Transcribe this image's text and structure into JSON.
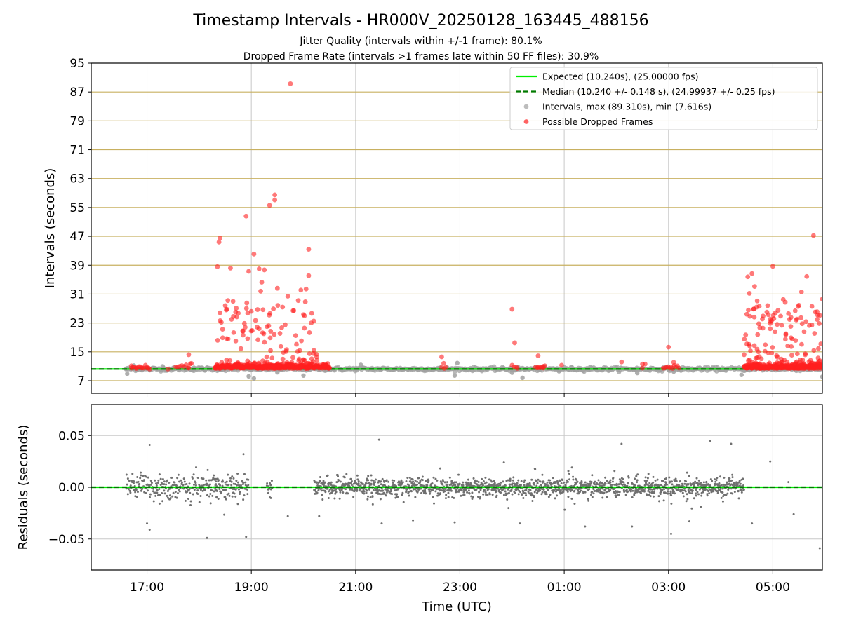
{
  "title": "Timestamp Intervals - HR000V_20250128_163445_488156",
  "subtitle_1": "Jitter Quality (intervals within +/-1 frame): 80.1%",
  "subtitle_2": "Dropped Frame Rate (intervals >1 frames late within 50 FF files): 30.9%",
  "colors": {
    "expected": "#00ee00",
    "median": "#007a00",
    "interval_points": "#a0a0a0",
    "dropped_points": "#ff2020",
    "threshold_lines": "#c8b060",
    "residual_points": "#707070",
    "grid": "#c8c8c8"
  },
  "chart_data": [
    {
      "type": "scatter",
      "panel": "top",
      "xlabel": "",
      "ylabel": "Intervals (seconds)",
      "ylim": [
        3.5,
        95
      ],
      "yticks": [
        7,
        15,
        23,
        31,
        39,
        47,
        55,
        63,
        71,
        79,
        87,
        95
      ],
      "xtick_labels": [
        "17:00",
        "19:00",
        "21:00",
        "23:00",
        "01:00",
        "03:00",
        "05:00"
      ],
      "xlim_hours": [
        15.93,
        29.95
      ],
      "grid": "vertical lines at x ticks",
      "legend_position": "top-right",
      "threshold_lines_y": [
        7,
        15,
        23,
        31,
        39,
        47,
        55,
        63,
        71,
        79,
        87
      ],
      "expected": {
        "name": "Expected (10.240s), (25.00000 fps)",
        "value": 10.24
      },
      "median": {
        "name": "Median (10.240 +/- 0.148 s), (24.99937 +/- 0.25 fps)",
        "value": 10.24
      },
      "intervals_legend": "Intervals, max (89.310s), min (7.616s)",
      "dropped_legend": "Possible Dropped Frames",
      "interval_points": [
        [
          16.6,
          10.3
        ],
        [
          16.62,
          8.9
        ],
        [
          16.7,
          10.5
        ],
        [
          16.75,
          11.2
        ],
        [
          16.9,
          10.1
        ],
        [
          17.0,
          10.4
        ],
        [
          17.05,
          9.9
        ],
        [
          17.3,
          11.0
        ],
        [
          17.5,
          10.2
        ],
        [
          17.9,
          10.6
        ],
        [
          18.1,
          10.0
        ],
        [
          18.95,
          8.2
        ],
        [
          19.05,
          7.6
        ],
        [
          19.5,
          9.3
        ],
        [
          20.0,
          8.4
        ],
        [
          20.1,
          10.9
        ],
        [
          20.6,
          10.2
        ],
        [
          21.1,
          11.4
        ],
        [
          21.5,
          10.3
        ],
        [
          22.0,
          10.1
        ],
        [
          22.6,
          10.0
        ],
        [
          22.9,
          8.4
        ],
        [
          22.95,
          11.9
        ],
        [
          23.5,
          10.4
        ],
        [
          24.0,
          9.2
        ],
        [
          24.1,
          10.7
        ],
        [
          24.2,
          7.8
        ],
        [
          24.9,
          9.6
        ],
        [
          25.5,
          10.8
        ],
        [
          26.0,
          10.6
        ],
        [
          26.4,
          9.1
        ],
        [
          26.7,
          10.5
        ],
        [
          27.2,
          10.4
        ],
        [
          27.1,
          9.5
        ],
        [
          27.6,
          10.6
        ],
        [
          28.4,
          8.6
        ],
        [
          28.5,
          10.1
        ],
        [
          29.0,
          10.3
        ],
        [
          29.95,
          8.1
        ]
      ],
      "dropped_points": [
        [
          16.7,
          10.5
        ],
        [
          16.8,
          10.4
        ],
        [
          16.9,
          10.5
        ],
        [
          17.0,
          10.7
        ],
        [
          17.05,
          10.2
        ],
        [
          17.4,
          10.2
        ],
        [
          17.8,
          14.2
        ],
        [
          17.85,
          11.8
        ],
        [
          17.8,
          10.5
        ],
        [
          18.35,
          38.6
        ],
        [
          18.38,
          45.4
        ],
        [
          18.4,
          46.5
        ],
        [
          18.45,
          18.9
        ],
        [
          18.5,
          27.8
        ],
        [
          18.52,
          26.6
        ],
        [
          18.55,
          29.2
        ],
        [
          18.6,
          38.2
        ],
        [
          18.62,
          24.0
        ],
        [
          18.65,
          29.0
        ],
        [
          18.7,
          26.0
        ],
        [
          18.75,
          25.7
        ],
        [
          18.8,
          15.9
        ],
        [
          18.9,
          52.6
        ],
        [
          18.95,
          37.3
        ],
        [
          19.0,
          26.2
        ],
        [
          19.05,
          42.1
        ],
        [
          19.08,
          23.7
        ],
        [
          19.12,
          26.7
        ],
        [
          19.15,
          38.0
        ],
        [
          19.18,
          31.8
        ],
        [
          19.2,
          34.3
        ],
        [
          19.25,
          37.7
        ],
        [
          19.3,
          22.0
        ],
        [
          19.35,
          55.6
        ],
        [
          19.45,
          58.5
        ],
        [
          19.45,
          57.1
        ],
        [
          19.5,
          32.6
        ],
        [
          19.55,
          20.1
        ],
        [
          19.6,
          27.4
        ],
        [
          19.65,
          22.5
        ],
        [
          19.7,
          30.4
        ],
        [
          19.75,
          89.3
        ],
        [
          19.8,
          26.4
        ],
        [
          19.85,
          19.5
        ],
        [
          19.9,
          29.2
        ],
        [
          19.95,
          32.1
        ],
        [
          20.0,
          25.3
        ],
        [
          20.05,
          32.4
        ],
        [
          20.1,
          36.1
        ],
        [
          20.1,
          43.4
        ],
        [
          20.15,
          23.0
        ],
        [
          20.2,
          15.4
        ],
        [
          20.25,
          13.6
        ],
        [
          20.4,
          11.2
        ],
        [
          20.5,
          10.5
        ],
        [
          22.65,
          13.6
        ],
        [
          22.7,
          10.4
        ],
        [
          24.0,
          26.8
        ],
        [
          24.05,
          17.5
        ],
        [
          24.1,
          10.4
        ],
        [
          24.5,
          13.9
        ],
        [
          24.5,
          10.6
        ],
        [
          24.6,
          10.5
        ],
        [
          24.95,
          11.3
        ],
        [
          26.1,
          12.2
        ],
        [
          26.5,
          10.5
        ],
        [
          27.0,
          16.3
        ],
        [
          27.1,
          12.1
        ],
        [
          27.2,
          10.5
        ],
        [
          28.45,
          14.2
        ],
        [
          28.48,
          19.7
        ],
        [
          28.5,
          25.4
        ],
        [
          28.52,
          35.8
        ],
        [
          28.55,
          31.2
        ],
        [
          28.6,
          36.7
        ],
        [
          28.65,
          33.1
        ],
        [
          28.7,
          29.1
        ],
        [
          28.75,
          21.7
        ],
        [
          28.8,
          24.1
        ],
        [
          28.9,
          27.8
        ],
        [
          28.95,
          21.4
        ],
        [
          29.0,
          38.7
        ],
        [
          29.05,
          25.8
        ],
        [
          29.1,
          26.5
        ],
        [
          29.15,
          24.9
        ],
        [
          29.2,
          29.5
        ],
        [
          29.25,
          20.0
        ],
        [
          29.3,
          25.6
        ],
        [
          29.35,
          18.9
        ],
        [
          29.45,
          23.8
        ],
        [
          29.5,
          27.9
        ],
        [
          29.55,
          31.6
        ],
        [
          29.6,
          20.6
        ],
        [
          29.65,
          35.9
        ],
        [
          29.7,
          22.3
        ],
        [
          29.75,
          27.6
        ],
        [
          29.78,
          47.2
        ],
        [
          29.8,
          20.1
        ],
        [
          29.85,
          26.1
        ],
        [
          29.9,
          25.1
        ],
        [
          29.92,
          17.2
        ],
        [
          29.95,
          29.6
        ]
      ]
    },
    {
      "type": "scatter",
      "panel": "bottom",
      "xlabel": "Time (UTC)",
      "ylabel": "Residuals (seconds)",
      "ylim": [
        -0.08,
        0.08
      ],
      "yticks": [
        -0.05,
        0.0,
        0.05
      ],
      "ytick_labels": [
        "−0.05",
        "0.00",
        "0.05"
      ],
      "xtick_labels": [
        "17:00",
        "19:00",
        "21:00",
        "23:00",
        "01:00",
        "03:00",
        "05:00"
      ],
      "xlim_hours": [
        15.93,
        29.95
      ],
      "grid": "both",
      "zero_line": 0,
      "point_clusters": [
        {
          "x_range": [
            16.6,
            17.3
          ],
          "spread": 0.011
        },
        {
          "x_range": [
            17.3,
            18.35
          ],
          "spread": 0.01
        },
        {
          "x_range": [
            18.3,
            18.95
          ],
          "spread": 0.01
        },
        {
          "x_range": [
            19.3,
            19.4
          ],
          "spread": 0.008
        },
        {
          "x_range": [
            20.2,
            28.45
          ],
          "spread": 0.008
        }
      ],
      "outlier_points": [
        [
          17.05,
          0.041
        ],
        [
          17.05,
          -0.041
        ],
        [
          17.0,
          -0.035
        ],
        [
          18.15,
          -0.049
        ],
        [
          18.9,
          -0.048
        ],
        [
          18.85,
          0.032
        ],
        [
          18.92,
          0.089
        ],
        [
          19.7,
          -0.028
        ],
        [
          20.3,
          -0.028
        ],
        [
          20.35,
          0.085
        ],
        [
          21.45,
          0.046
        ],
        [
          21.5,
          -0.035
        ],
        [
          22.1,
          -0.032
        ],
        [
          22.9,
          -0.034
        ],
        [
          24.15,
          -0.035
        ],
        [
          24.7,
          -0.082
        ],
        [
          25.4,
          -0.038
        ],
        [
          26.1,
          0.042
        ],
        [
          26.3,
          -0.038
        ],
        [
          27.0,
          0.092
        ],
        [
          27.05,
          -0.045
        ],
        [
          27.4,
          -0.033
        ],
        [
          27.8,
          0.045
        ],
        [
          28.2,
          0.042
        ],
        [
          28.6,
          -0.035
        ],
        [
          28.95,
          0.025
        ],
        [
          29.3,
          0.005
        ],
        [
          29.4,
          -0.026
        ],
        [
          29.9,
          -0.059
        ]
      ]
    }
  ]
}
